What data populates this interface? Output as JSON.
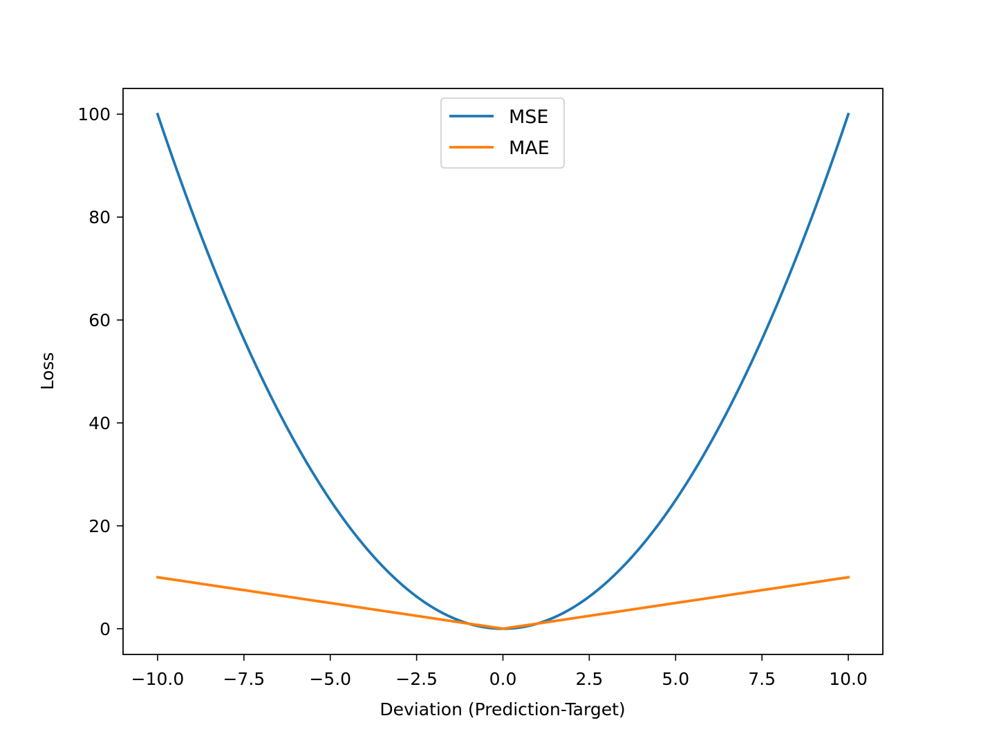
{
  "chart_data": {
    "type": "line",
    "title": "",
    "xlabel": "Deviation (Prediction-Target)",
    "ylabel": "Loss",
    "xlim": [
      -11,
      11
    ],
    "ylim": [
      -5,
      105
    ],
    "x_ticks": [
      -10.0,
      -7.5,
      -5.0,
      -2.5,
      0.0,
      2.5,
      5.0,
      7.5,
      10.0
    ],
    "x_tick_labels": [
      "−10.0",
      "−7.5",
      "−5.0",
      "−2.5",
      "0.0",
      "2.5",
      "5.0",
      "7.5",
      "10.0"
    ],
    "y_ticks": [
      0,
      20,
      40,
      60,
      80,
      100
    ],
    "y_tick_labels": [
      "0",
      "20",
      "40",
      "60",
      "80",
      "100"
    ],
    "grid": false,
    "legend_position": "upper center",
    "x": [
      -10,
      -9,
      -8,
      -7,
      -6,
      -5,
      -4,
      -3,
      -2,
      -1,
      0,
      1,
      2,
      3,
      4,
      5,
      6,
      7,
      8,
      9,
      10
    ],
    "series": [
      {
        "name": "MSE",
        "color": "#1f77b4",
        "values": [
          100,
          81,
          64,
          49,
          36,
          25,
          16,
          9,
          4,
          1,
          0,
          1,
          4,
          9,
          16,
          25,
          36,
          49,
          64,
          81,
          100
        ]
      },
      {
        "name": "MAE",
        "color": "#ff7f0e",
        "values": [
          10,
          9,
          8,
          7,
          6,
          5,
          4,
          3,
          2,
          1,
          0,
          1,
          2,
          3,
          4,
          5,
          6,
          7,
          8,
          9,
          10
        ]
      }
    ]
  }
}
